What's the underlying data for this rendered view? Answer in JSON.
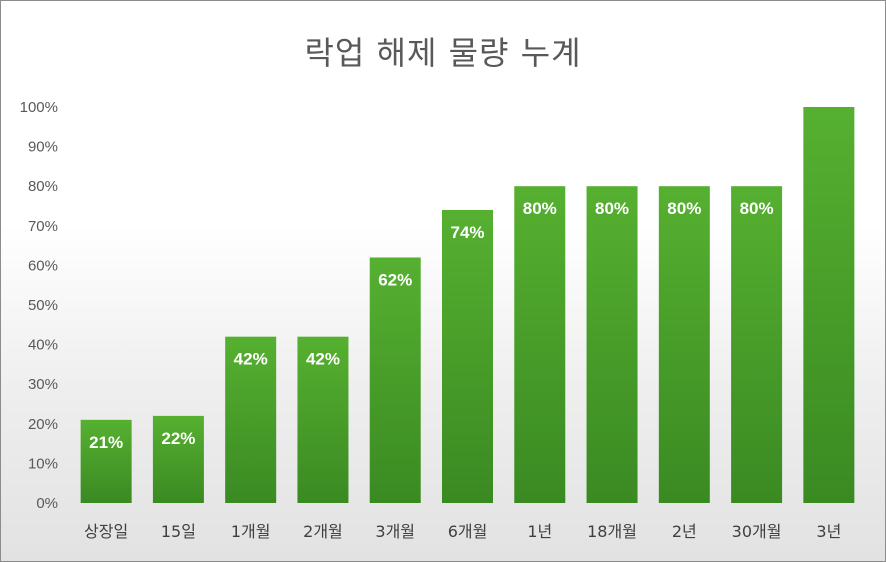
{
  "chart_data": {
    "type": "bar",
    "title": "락업 해제 물량 누계",
    "categories": [
      "상장일",
      "15일",
      "1개월",
      "2개월",
      "3개월",
      "6개월",
      "1년",
      "18개월",
      "2년",
      "30개월",
      "3년"
    ],
    "values": [
      21,
      22,
      42,
      42,
      62,
      74,
      80,
      80,
      80,
      80,
      100
    ],
    "data_labels": [
      "21%",
      "22%",
      "42%",
      "42%",
      "62%",
      "74%",
      "80%",
      "80%",
      "80%",
      "80%",
      ""
    ],
    "ylim": [
      0,
      100
    ],
    "yticks": [
      0,
      10,
      20,
      30,
      40,
      50,
      60,
      70,
      80,
      90,
      100
    ],
    "ytick_labels": [
      "0%",
      "10%",
      "20%",
      "30%",
      "40%",
      "50%",
      "60%",
      "70%",
      "80%",
      "90%",
      "100%"
    ],
    "grid": false,
    "legend": "none",
    "colors": {
      "bar_top": "#56b030",
      "bar_bottom": "#3a8a22",
      "label": "#ffffff"
    }
  }
}
